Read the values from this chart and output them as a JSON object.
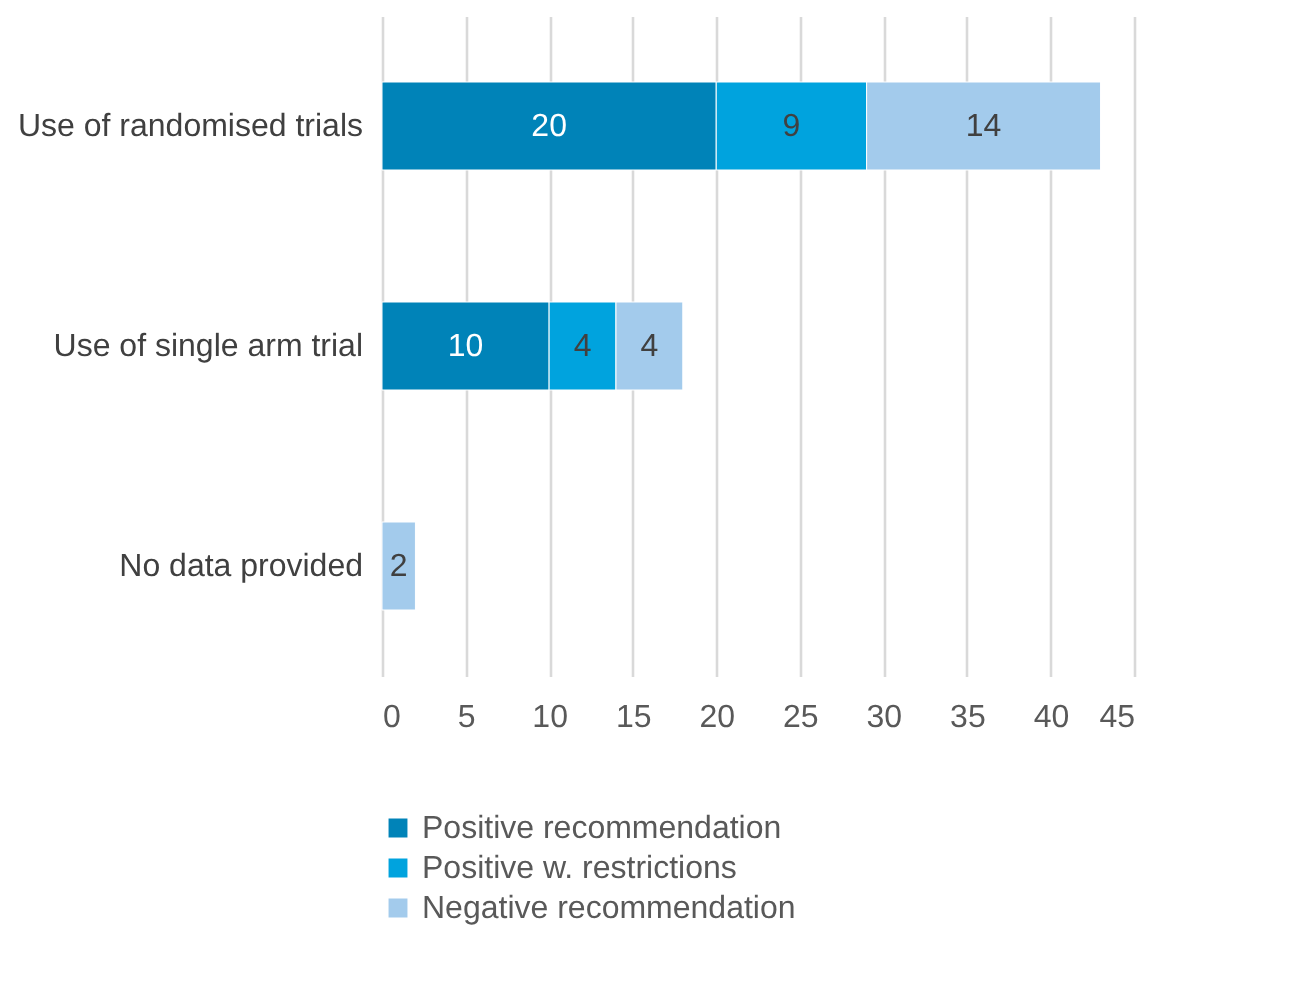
{
  "chart_data": {
    "type": "bar",
    "orientation": "horizontal",
    "stacked": true,
    "categories": [
      "Use of randomised trials",
      "Use of single arm trial",
      "No data provided"
    ],
    "series": [
      {
        "name": "Positive recommendation",
        "color": "#0083b8",
        "values": [
          20,
          10,
          null
        ]
      },
      {
        "name": "Positive w. restrictions",
        "color": "#00a3de",
        "values": [
          9,
          4,
          null
        ]
      },
      {
        "name": "Negative recommendation",
        "color": "#a3cbec",
        "values": [
          14,
          4,
          2
        ]
      }
    ],
    "xlim": [
      0,
      45
    ],
    "xticks": [
      0,
      5,
      10,
      15,
      20,
      25,
      30,
      35,
      40,
      45
    ],
    "grid": "x",
    "legend": "bottom",
    "data_labels": true
  }
}
